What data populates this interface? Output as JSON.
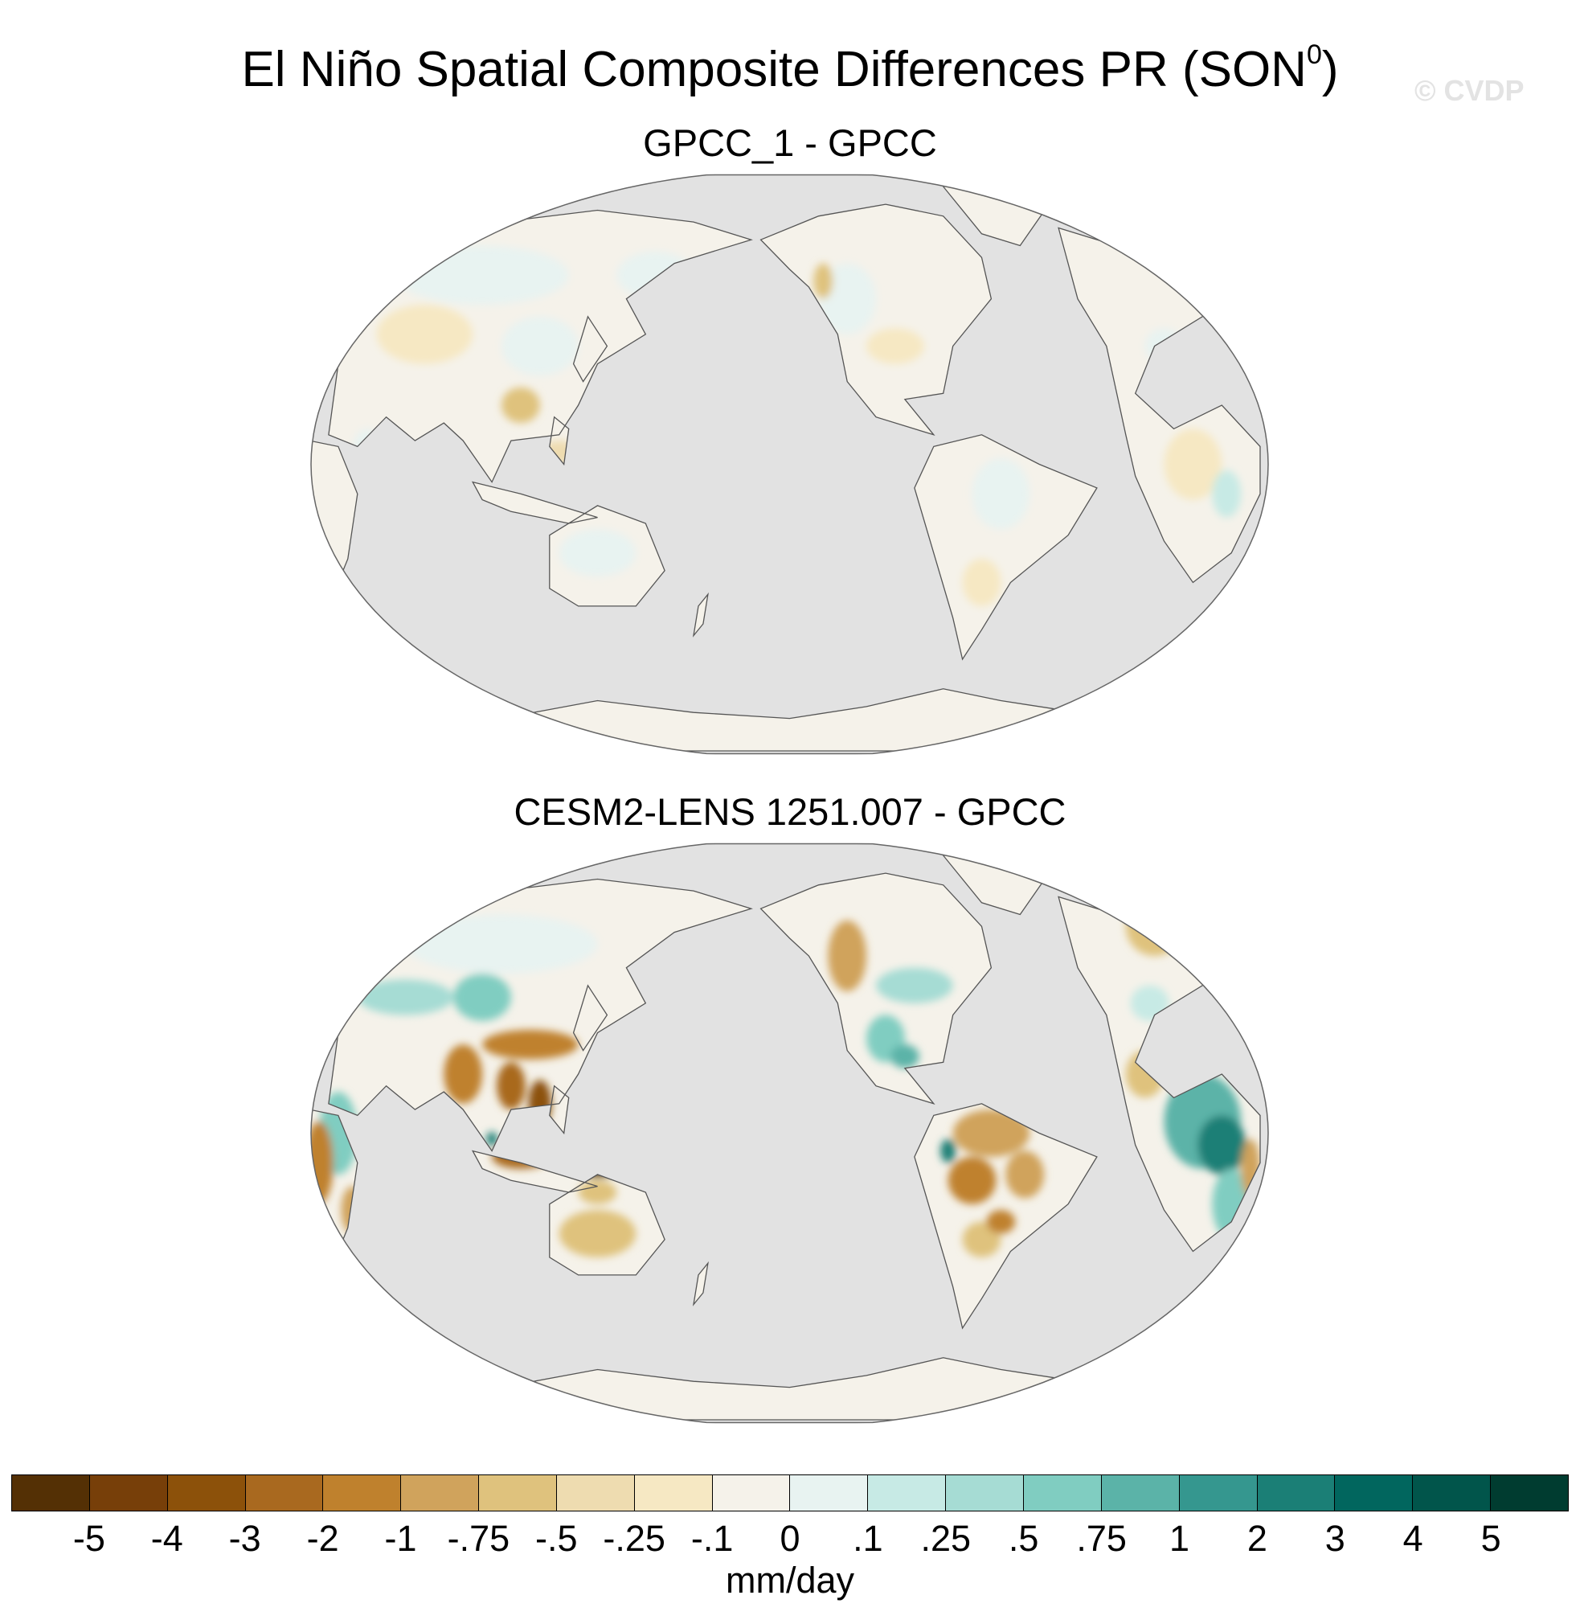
{
  "figure": {
    "title": "El Niño Spatial Composite Differences PR (SON",
    "title_superscript": "0",
    "title_suffix": ")",
    "watermark": "© CVDP"
  },
  "panels": [
    {
      "title": "GPCC_1 - GPCC"
    },
    {
      "title": "CESM2-LENS 1251.007 - GPCC"
    }
  ],
  "colorbar": {
    "units": "mm/day",
    "tick_labels": [
      "-5",
      "-4",
      "-3",
      "-2",
      "-1",
      "-.75",
      "-.5",
      "-.25",
      "-.1",
      "0",
      ".1",
      ".25",
      ".5",
      ".75",
      "1",
      "2",
      "3",
      "4",
      "5"
    ],
    "colors": [
      "#543005",
      "#773f09",
      "#8c510a",
      "#a9691f",
      "#bf812d",
      "#d0a35c",
      "#dfc27d",
      "#eedcb0",
      "#f6e8c3",
      "#f5f2ea",
      "#e8f3f1",
      "#c7eae5",
      "#a6dcd4",
      "#80cdc1",
      "#5bb3a8",
      "#35978f",
      "#1b7f76",
      "#01665e",
      "#01554b",
      "#003c30"
    ],
    "missing_color": "#e2e2e2"
  }
}
